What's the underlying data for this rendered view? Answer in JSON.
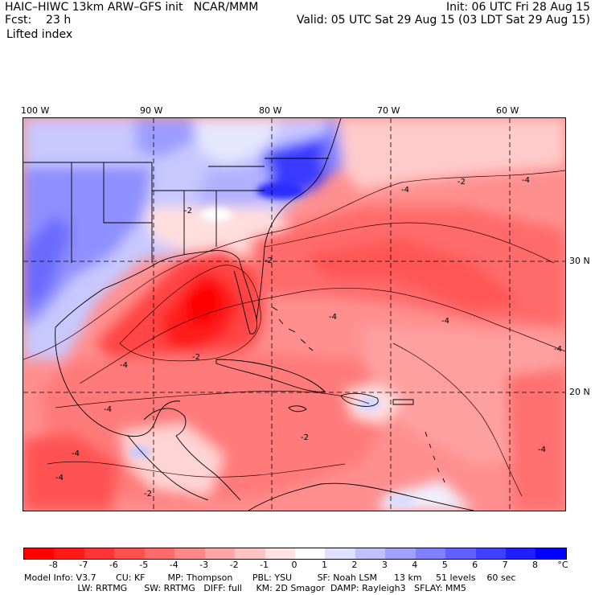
{
  "header": {
    "title_left": "HAIC–HIWC 13km ARW–GFS init   NCAR/MMM",
    "fcst_label": "Fcst:    23 h",
    "field": "Lifted index",
    "init": "Init: 06 UTC Fri 28 Aug 15",
    "valid": "Valid: 05 UTC Sat 29 Aug 15 (03 LDT Sat 29 Aug 15)"
  },
  "map": {
    "lon_labels": [
      "100 W",
      "90 W",
      "80 W",
      "70 W",
      "60 W"
    ],
    "lat_labels": [
      "30 N",
      "20 N"
    ],
    "contour_labels": [
      "-2",
      "-4",
      "-2",
      "-4",
      "-2",
      "-4",
      "-4",
      "-2",
      "-4",
      "-4",
      "-2",
      "-4",
      "-4",
      "-4",
      "-4",
      "-2"
    ]
  },
  "colorbar": {
    "ticks": [
      "-8",
      "-7",
      "-6",
      "-5",
      "-4",
      "-3",
      "-2",
      "-1",
      "0",
      "1",
      "2",
      "3",
      "4",
      "5",
      "6",
      "7",
      "8"
    ],
    "unit": "°C",
    "colors": [
      "#ff0000",
      "#ff1a1a",
      "#ff3535",
      "#ff5050",
      "#ff6c6c",
      "#ff8888",
      "#ffa5a5",
      "#ffc3c3",
      "#ffe2e2",
      "#ffffff",
      "#e0e0ff",
      "#c0c0ff",
      "#a0a0ff",
      "#8080ff",
      "#6060ff",
      "#4040ff",
      "#2020ff",
      "#0000ff"
    ]
  },
  "footer": {
    "line1": "Model Info: V3.7       CU: KF        MP: Thompson       PBL: YSU         SF: Noah LSM      13 km     51 levels    60 sec",
    "line2": "                   LW: RRTMG      SW: RRTMG   DIFF: full     KM: 2D Smagor  DAMP: Rayleigh3   SFLAY: MM5"
  }
}
